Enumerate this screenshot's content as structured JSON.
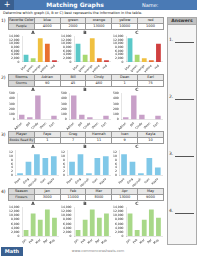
{
  "title": "Matching Graphs",
  "subtitle": "Determine which graph (A, B or C) best represents the information in the table.",
  "annotations": {
    "logo": "+",
    "name_label": "Name:",
    "answers_label": "Answers",
    "answer_numbers": [
      "1.",
      "2.",
      "3.",
      "4."
    ],
    "footer_logo": "Math",
    "footer_text": "www.commoncoresheets.com"
  },
  "tables": [
    {
      "number": "1)",
      "headers": [
        "Favorite Color",
        "blue",
        "green",
        "orange",
        "yellow",
        "red"
      ],
      "row_label": "People",
      "values": [
        4000,
        2000,
        13000,
        10000,
        1000
      ]
    },
    {
      "number": "2)",
      "headers": [
        "Storms",
        "Adrian",
        "Bill",
        "Cindy",
        "Dean",
        "Earl"
      ],
      "row_label": "Storms",
      "values": [
        90,
        45,
        460,
        1,
        75
      ]
    },
    {
      "number": "3)",
      "headers": [
        "Player",
        "Faye",
        "Greg",
        "Hannah",
        "Ivan",
        "Kayla"
      ],
      "row_label": "Books Read By",
      "values": [
        1,
        7,
        11,
        9,
        10
      ]
    },
    {
      "number": "4)",
      "headers": [
        "Season",
        "Jan",
        "Feb",
        "Mar",
        "Apr",
        "May"
      ],
      "row_label": "Flowers",
      "values": [
        3000,
        11000,
        8000,
        13000,
        9000
      ]
    }
  ],
  "chart_data": [
    {
      "type": "bar",
      "title": "A",
      "categories": [
        "blue",
        "green",
        "orange",
        "yellow",
        "red"
      ],
      "values": [
        4000,
        2000,
        13000,
        10000,
        1000
      ],
      "colors": [
        "#5bc8c8",
        "#a8d870",
        "#f0c040",
        "#e87030",
        "#d04040"
      ],
      "ylim": [
        0,
        14000
      ],
      "yticks": [
        0,
        {
          "value": 2000,
          "label": "2,000"
        },
        {
          "value": 4000,
          "label": "4,000"
        },
        {
          "value": 6000,
          "label": "6,000"
        },
        {
          "value": 8000,
          "label": "8,000"
        },
        {
          "value": 10000,
          "label": "10,000"
        },
        {
          "value": 12000,
          "label": "12,000"
        },
        {
          "value": 14000,
          "label": "14,000"
        }
      ],
      "grid": false
    },
    {
      "type": "bar",
      "title": "B",
      "categories": [
        "blue",
        "green",
        "orange",
        "yellow",
        "red"
      ],
      "values": [
        10000,
        4000,
        13000,
        2000,
        1000
      ],
      "colors": [
        "#5bc8c8",
        "#a8d870",
        "#f0c040",
        "#e87030",
        "#d04040"
      ],
      "ylim": [
        0,
        14000
      ],
      "yticks": [
        0,
        {
          "value": 2000,
          "label": "2,000"
        },
        {
          "value": 4000,
          "label": "4,000"
        },
        {
          "value": 6000,
          "label": "6,000"
        },
        {
          "value": 8000,
          "label": "8,000"
        },
        {
          "value": 10000,
          "label": "10,000"
        },
        {
          "value": 12000,
          "label": "12,000"
        },
        {
          "value": 14000,
          "label": "14,000"
        }
      ],
      "grid": false
    },
    {
      "type": "bar",
      "title": "C",
      "categories": [
        "blue",
        "green",
        "orange",
        "yellow",
        "red"
      ],
      "values": [
        13000,
        4000,
        2000,
        1000,
        10000
      ],
      "colors": [
        "#5bc8c8",
        "#a8d870",
        "#f0c040",
        "#e87030",
        "#d04040"
      ],
      "ylim": [
        0,
        14000
      ],
      "yticks": [
        0,
        {
          "value": 2000,
          "label": "2,000"
        },
        {
          "value": 4000,
          "label": "4,000"
        },
        {
          "value": 6000,
          "label": "6,000"
        },
        {
          "value": 8000,
          "label": "8,000"
        },
        {
          "value": 10000,
          "label": "10,000"
        },
        {
          "value": 12000,
          "label": "12,000"
        },
        {
          "value": 14000,
          "label": "14,000"
        }
      ],
      "grid": false
    },
    {
      "type": "bar",
      "title": "A",
      "categories": [
        "Adrian",
        "Bill",
        "Cindy",
        "Dean",
        "Earl"
      ],
      "values": [
        90,
        45,
        460,
        1,
        75
      ],
      "color": "#c8a0c8",
      "ylim": [
        0,
        500
      ],
      "yticks": [
        0,
        100,
        200,
        300,
        400,
        500
      ],
      "grid": false
    },
    {
      "type": "bar",
      "title": "B",
      "categories": [
        "Adrian",
        "Bill",
        "Cindy",
        "Dean",
        "Earl"
      ],
      "values": [
        460,
        90,
        45,
        1,
        75
      ],
      "color": "#c8a0c8",
      "ylim": [
        0,
        500
      ],
      "yticks": [
        0,
        100,
        200,
        300,
        400,
        500
      ],
      "grid": false
    },
    {
      "type": "bar",
      "title": "C",
      "categories": [
        "Adrian",
        "Bill",
        "Cindy",
        "Dean",
        "Earl"
      ],
      "values": [
        45,
        460,
        90,
        1,
        75
      ],
      "color": "#c8a0c8",
      "ylim": [
        0,
        500
      ],
      "yticks": [
        0,
        100,
        200,
        300,
        400,
        500
      ],
      "grid": false
    },
    {
      "type": "bar",
      "title": "A",
      "categories": [
        "Faye",
        "Greg",
        "Hannah",
        "Ivan",
        "Kayla"
      ],
      "values": [
        1,
        7,
        11,
        9,
        10
      ],
      "color": "#80c8e8",
      "ylim": [
        0,
        13
      ],
      "yticks": [
        0,
        2,
        4,
        6,
        8,
        10,
        12
      ],
      "grid": false
    },
    {
      "type": "bar",
      "title": "B",
      "categories": [
        "Faye",
        "Greg",
        "Hannah",
        "Ivan",
        "Kayla"
      ],
      "values": [
        7,
        11,
        1,
        9,
        10
      ],
      "color": "#80c8e8",
      "ylim": [
        0,
        13
      ],
      "yticks": [
        0,
        2,
        4,
        6,
        8,
        10,
        12
      ],
      "grid": false
    },
    {
      "type": "bar",
      "title": "C",
      "categories": [
        "Faye",
        "Greg",
        "Hannah",
        "Ivan",
        "Kayla"
      ],
      "values": [
        11,
        7,
        1,
        9,
        4
      ],
      "color": "#80c8e8",
      "ylim": [
        0,
        13
      ],
      "yticks": [
        0,
        2,
        4,
        6,
        8,
        10,
        12
      ],
      "grid": false
    },
    {
      "type": "bar",
      "title": "A",
      "categories": [
        "Jan",
        "Feb",
        "Mar",
        "Apr",
        "May"
      ],
      "values": [
        3000,
        11000,
        8000,
        13000,
        9000
      ],
      "color": "#a8d888",
      "ylim": [
        0,
        14000
      ],
      "yticks": [
        0,
        {
          "value": 2000,
          "label": "2,000"
        },
        {
          "value": 4000,
          "label": "4,000"
        },
        {
          "value": 6000,
          "label": "6,000"
        },
        {
          "value": 8000,
          "label": "8,000"
        },
        {
          "value": 10000,
          "label": "10,000"
        },
        {
          "value": 12000,
          "label": "12,000"
        },
        {
          "value": 14000,
          "label": "14,000"
        }
      ],
      "grid": false
    },
    {
      "type": "bar",
      "title": "B",
      "categories": [
        "Jan",
        "Feb",
        "Mar",
        "Apr",
        "May"
      ],
      "values": [
        3000,
        8000,
        13000,
        9000,
        11000
      ],
      "color": "#a8d888",
      "ylim": [
        0,
        14000
      ],
      "yticks": [
        0,
        {
          "value": 2000,
          "label": "2,000"
        },
        {
          "value": 4000,
          "label": "4,000"
        },
        {
          "value": 6000,
          "label": "6,000"
        },
        {
          "value": 8000,
          "label": "8,000"
        },
        {
          "value": 10000,
          "label": "10,000"
        },
        {
          "value": 12000,
          "label": "12,000"
        },
        {
          "value": 14000,
          "label": "14,000"
        }
      ],
      "grid": false
    },
    {
      "type": "bar",
      "title": "C",
      "categories": [
        "Jan",
        "Feb",
        "Mar",
        "Apr",
        "May"
      ],
      "values": [
        11000,
        3000,
        8000,
        13000,
        9000
      ],
      "color": "#a8d888",
      "ylim": [
        0,
        14000
      ],
      "yticks": [
        0,
        {
          "value": 2000,
          "label": "2,000"
        },
        {
          "value": 4000,
          "label": "4,000"
        },
        {
          "value": 6000,
          "label": "6,000"
        },
        {
          "value": 8000,
          "label": "8,000"
        },
        {
          "value": 10000,
          "label": "10,000"
        },
        {
          "value": 12000,
          "label": "12,000"
        },
        {
          "value": 14000,
          "label": "14,000"
        }
      ],
      "grid": false
    }
  ]
}
